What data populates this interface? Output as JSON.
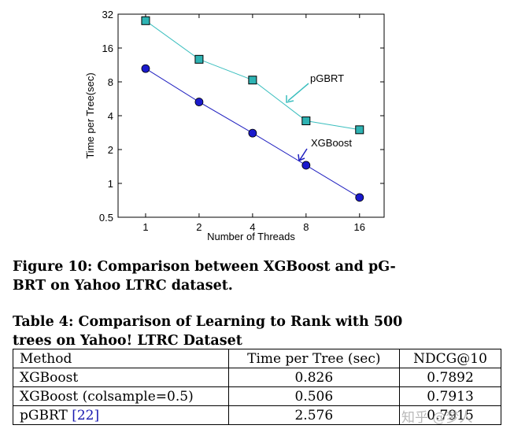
{
  "chart_data": {
    "type": "line",
    "title": "",
    "xlabel": "Number of Threads",
    "ylabel": "Time per Tree(sec)",
    "xscale": "log2",
    "yscale": "log2",
    "x": [
      1,
      2,
      4,
      8,
      16
    ],
    "x_tick_labels": [
      "1",
      "2",
      "4",
      "8",
      "16"
    ],
    "y_ticks": [
      0.5,
      1,
      2,
      4,
      8,
      16,
      32
    ],
    "y_tick_labels": [
      "0.5",
      "1",
      "2",
      "4",
      "8",
      "16",
      "32"
    ],
    "xlim": [
      0.7,
      22
    ],
    "ylim": [
      0.5,
      32
    ],
    "series": [
      {
        "name": "pGBRT",
        "values": [
          28,
          12.7,
          8.3,
          3.6,
          3.0
        ],
        "color": "#3cbfbf",
        "marker": "square"
      },
      {
        "name": "XGBoost",
        "values": [
          10.5,
          5.3,
          2.8,
          1.45,
          0.75
        ],
        "color": "#2020c0",
        "marker": "circle"
      }
    ],
    "annotations": [
      {
        "text": "pGBRT",
        "target_series": "pGBRT"
      },
      {
        "text": "XGBoost",
        "target_series": "XGBoost"
      }
    ]
  },
  "figure_caption": "Figure 10: Comparison between XGBoost and pG-BRT on Yahoo LTRC dataset.",
  "figure_caption_lines": [
    "Figure 10: Comparison between XGBoost and pG-",
    "BRT on Yahoo LTRC dataset."
  ],
  "table_title_lines": [
    "Table 4: Comparison of Learning to Rank with 500",
    "trees on Yahoo! LTRC Dataset"
  ],
  "table": {
    "headers": [
      "Method",
      "Time per Tree (sec)",
      "NDCG@10"
    ],
    "rows": [
      {
        "method": "XGBoost",
        "time": "0.826",
        "ndcg": "0.7892"
      },
      {
        "method": "XGBoost (colsample=0.5)",
        "time": "0.506",
        "ndcg": "0.7913"
      },
      {
        "method": "pGBRT ",
        "ref": "[22]",
        "time": "2.576",
        "ndcg": "0.7915"
      }
    ]
  },
  "watermark": "知乎 @梦人"
}
